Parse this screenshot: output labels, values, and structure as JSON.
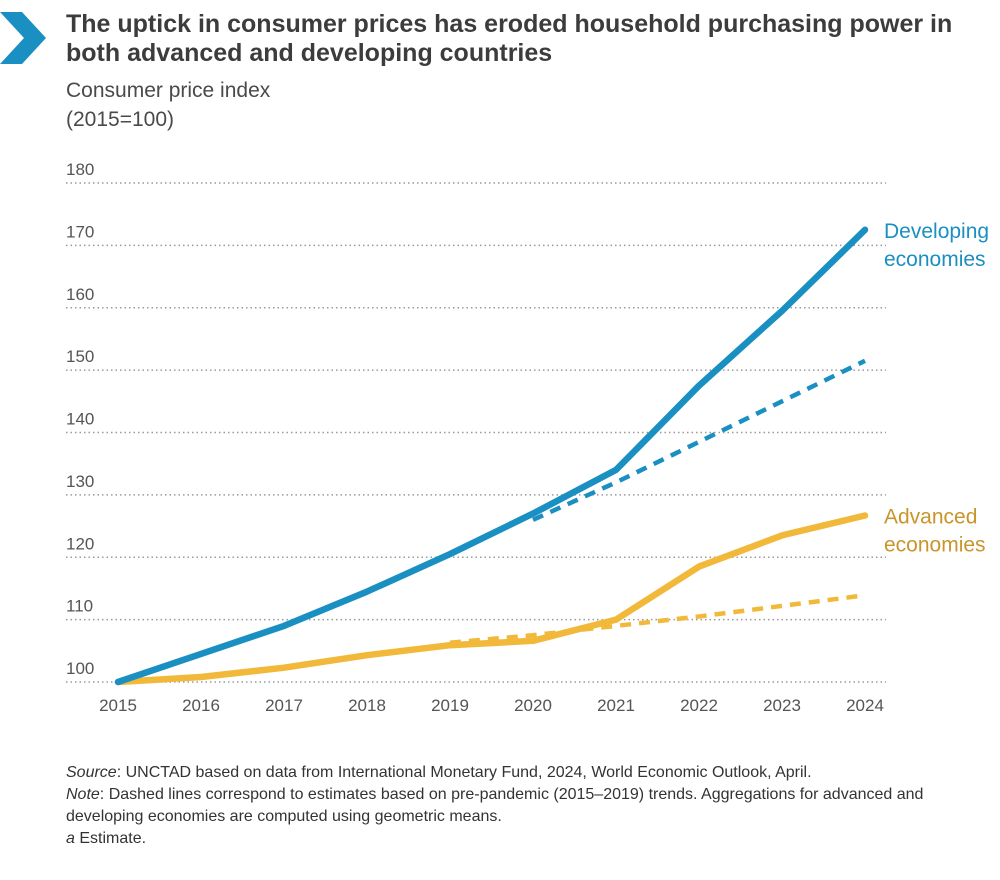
{
  "title": "The uptick in consumer prices has eroded household purchasing power in both advanced and developing countries",
  "subtitle_line1": "Consumer price index",
  "subtitle_line2": "(2015=100)",
  "colors": {
    "developing": "#1a8fc2",
    "advanced": "#f2b83a",
    "grid": "#9a9a9a",
    "chevron": "#1a8fc2"
  },
  "chart_data": {
    "type": "line",
    "x": [
      "2015",
      "2016",
      "2017",
      "2018",
      "2019",
      "2020",
      "2021",
      "2022",
      "2023",
      "2024"
    ],
    "ylim": [
      100,
      180
    ],
    "yticks": [
      100,
      110,
      120,
      130,
      140,
      150,
      160,
      170,
      180
    ],
    "grid": true,
    "series": [
      {
        "name": "Developing economies",
        "style": "solid",
        "color": "#1a8fc2",
        "values": [
          100,
          104.5,
          109,
          114.5,
          120.5,
          127,
          134,
          147.5,
          159.5,
          172.5
        ]
      },
      {
        "name": "Developing economies",
        "style": "dashed",
        "color": "#1a8fc2",
        "values": [
          null,
          null,
          null,
          null,
          null,
          126,
          132,
          138.5,
          145,
          151.5
        ]
      },
      {
        "name": "Advanced economies",
        "style": "solid",
        "color": "#f2b83a",
        "values": [
          100,
          100.8,
          102.3,
          104.3,
          105.9,
          106.6,
          110,
          118.5,
          123.5,
          126.7
        ]
      },
      {
        "name": "Advanced economies",
        "style": "dashed",
        "color": "#f2b83a",
        "values": [
          null,
          null,
          null,
          null,
          106.3,
          107.5,
          109,
          110.5,
          112.2,
          113.9
        ]
      }
    ],
    "series_labels": [
      {
        "lines": [
          "Developing",
          "economies"
        ],
        "color": "#1a8fc2"
      },
      {
        "lines": [
          "Advanced",
          "economies"
        ],
        "color": "#c9952a"
      }
    ]
  },
  "source_label": "Source",
  "source_text": ":  UNCTAD based on data from International Monetary Fund, 2024, World Economic Outlook, April.",
  "note_label": "Note",
  "note_text": ": Dashed lines correspond to estimates based on pre-pandemic (2015–2019) trends. Aggregations for advanced and developing economies are computed using geometric means.",
  "estimate_label": "a",
  "estimate_text": " Estimate."
}
